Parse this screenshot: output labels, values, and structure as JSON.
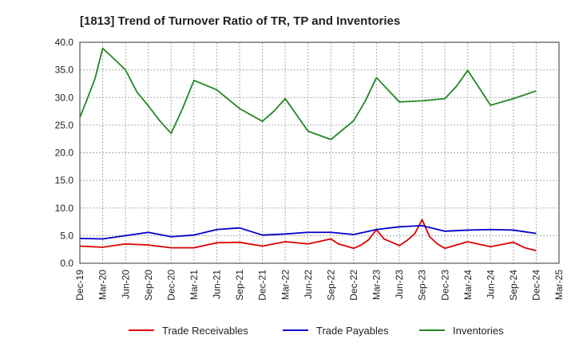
{
  "chart_data": {
    "type": "line",
    "title": "[1813]  Trend of Turnover Ratio of TR, TP and Inventories",
    "xlabel": "",
    "ylabel": "",
    "ylim": [
      0,
      40
    ],
    "yticks": [
      "0.0",
      "5.0",
      "10.0",
      "15.0",
      "20.0",
      "25.0",
      "30.0",
      "35.0",
      "40.0"
    ],
    "xticks": [
      "Dec-19",
      "Mar-20",
      "Jun-20",
      "Sep-20",
      "Dec-20",
      "Mar-21",
      "Jun-21",
      "Sep-21",
      "Dec-21",
      "Mar-22",
      "Jun-22",
      "Sep-22",
      "Dec-22",
      "Mar-23",
      "Jun-23",
      "Sep-23",
      "Dec-23",
      "Mar-24",
      "Jun-24",
      "Sep-24",
      "Dec-24",
      "Mar-25"
    ],
    "grid": true,
    "legend_position": "bottom",
    "series": [
      {
        "name": "Trade Receivables",
        "color": "#dd0000",
        "points": [
          [
            0,
            3.1
          ],
          [
            1,
            2.9
          ],
          [
            2,
            3.5
          ],
          [
            3,
            3.3
          ],
          [
            4,
            2.8
          ],
          [
            5,
            2.8
          ],
          [
            6,
            3.7
          ],
          [
            7,
            3.8
          ],
          [
            8,
            3.1
          ],
          [
            9,
            3.9
          ],
          [
            10,
            3.5
          ],
          [
            11,
            4.4
          ],
          [
            11.33,
            3.5
          ],
          [
            11.67,
            3.1
          ],
          [
            12,
            2.7
          ],
          [
            12.33,
            3.3
          ],
          [
            12.67,
            4.3
          ],
          [
            13,
            6.1
          ],
          [
            13.33,
            4.4
          ],
          [
            13.67,
            3.8
          ],
          [
            14,
            3.2
          ],
          [
            14.33,
            4.1
          ],
          [
            14.67,
            5.3
          ],
          [
            15,
            7.9
          ],
          [
            15.33,
            4.8
          ],
          [
            15.67,
            3.5
          ],
          [
            16,
            2.7
          ],
          [
            16.5,
            3.3
          ],
          [
            17,
            3.9
          ],
          [
            18,
            3.0
          ],
          [
            19,
            3.8
          ],
          [
            19.5,
            2.8
          ],
          [
            20,
            2.3
          ]
        ]
      },
      {
        "name": "Trade Payables",
        "color": "#0000cc",
        "points": [
          [
            0,
            4.5
          ],
          [
            1,
            4.4
          ],
          [
            2,
            5.0
          ],
          [
            3,
            5.6
          ],
          [
            4,
            4.8
          ],
          [
            5,
            5.1
          ],
          [
            6,
            6.1
          ],
          [
            7,
            6.4
          ],
          [
            8,
            5.1
          ],
          [
            9,
            5.3
          ],
          [
            10,
            5.6
          ],
          [
            11,
            5.6
          ],
          [
            12,
            5.2
          ],
          [
            13,
            6.1
          ],
          [
            14,
            6.6
          ],
          [
            15,
            6.8
          ],
          [
            16,
            5.8
          ],
          [
            17,
            6.0
          ],
          [
            18,
            6.1
          ],
          [
            19,
            6.0
          ],
          [
            20,
            5.4
          ]
        ]
      },
      {
        "name": "Inventories",
        "color": "#228822",
        "points": [
          [
            0,
            26.4
          ],
          [
            0.33,
            29.8
          ],
          [
            0.67,
            33.5
          ],
          [
            1,
            38.9
          ],
          [
            1.5,
            37.0
          ],
          [
            2,
            35.0
          ],
          [
            2.5,
            31.0
          ],
          [
            3,
            28.5
          ],
          [
            3.5,
            25.8
          ],
          [
            4,
            23.5
          ],
          [
            4.5,
            28.0
          ],
          [
            5,
            33.1
          ],
          [
            6,
            31.4
          ],
          [
            7,
            28.0
          ],
          [
            8,
            25.7
          ],
          [
            8.5,
            27.5
          ],
          [
            9,
            29.8
          ],
          [
            10,
            23.9
          ],
          [
            11,
            22.4
          ],
          [
            12,
            25.8
          ],
          [
            12.5,
            29.3
          ],
          [
            13,
            33.6
          ],
          [
            14,
            29.2
          ],
          [
            15,
            29.4
          ],
          [
            16,
            29.8
          ],
          [
            16.5,
            32.0
          ],
          [
            17,
            34.9
          ],
          [
            18,
            28.6
          ],
          [
            19,
            29.8
          ],
          [
            20,
            31.2
          ]
        ]
      }
    ]
  }
}
